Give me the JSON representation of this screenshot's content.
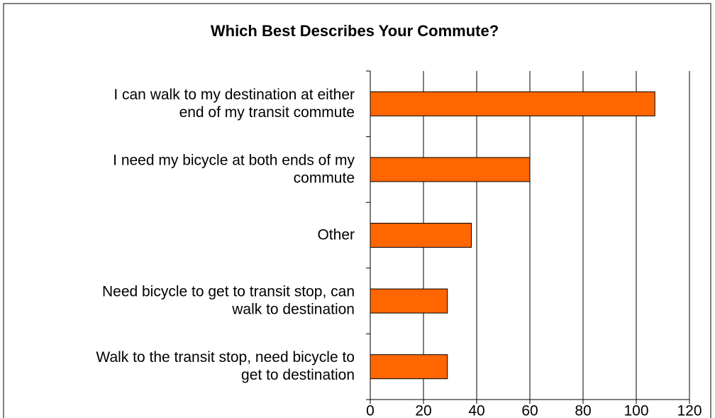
{
  "chart_data": {
    "type": "barh",
    "title": "Which Best Describes Your Commute?",
    "categories": [
      "I can walk to my destination at either\nend of my transit commute",
      "I need my bicycle at both ends of my\ncommute",
      "Other",
      "Need bicycle to get to transit stop, can\nwalk to destination",
      "Walk to the transit stop, need bicycle to\nget to destination"
    ],
    "values": [
      107,
      60,
      38,
      29,
      29
    ],
    "color": "#ff6600",
    "xlim": [
      0,
      120
    ],
    "xticks": [
      0,
      20,
      40,
      60,
      80,
      100,
      120
    ],
    "grid": true
  }
}
